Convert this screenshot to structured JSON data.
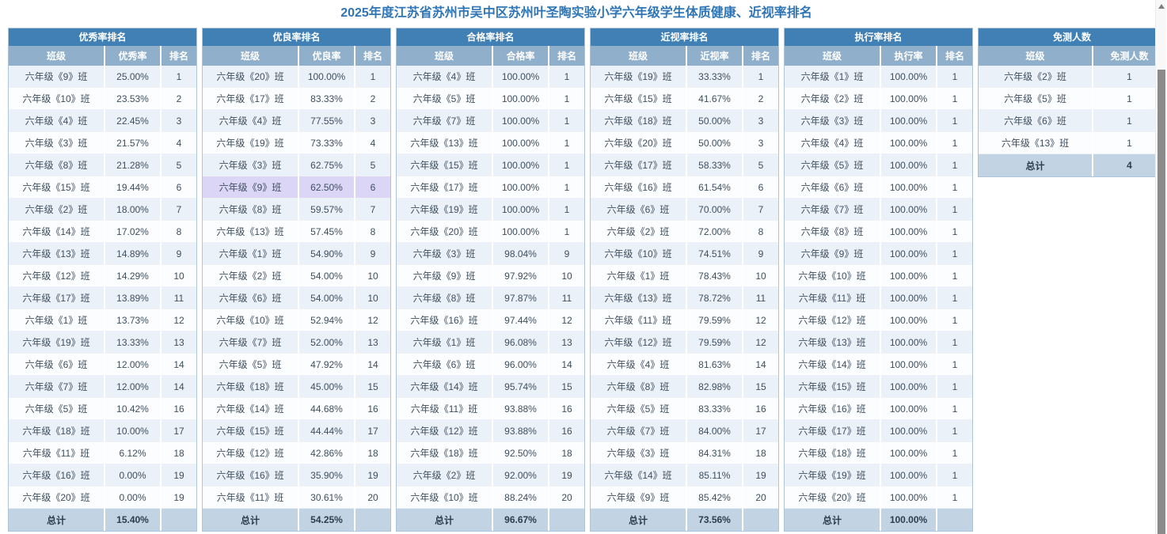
{
  "page": {
    "title": "2025年度江苏省苏州市吴中区苏州叶圣陶实验小学六年级学生体质健康、近视率排名"
  },
  "colors": {
    "header_bg": "#4180b5",
    "subheader_bg": "#8fafca",
    "row_odd": "#ebf1f8",
    "row_even": "#fbfdff",
    "row_highlight": "#dbd5f6",
    "total_bg": "#c2d3e3",
    "title_color": "#2e75b6",
    "cell_text": "#3f4e5e"
  },
  "scrollbar": {
    "up_icon": "scroll-up-arrow"
  },
  "tables": [
    {
      "id": "excellent-rate",
      "title": "优秀率排名",
      "columns": [
        "班级",
        "优秀率",
        "排名"
      ],
      "rows": [
        [
          "六年级《9》班",
          "25.00%",
          "1"
        ],
        [
          "六年级《10》班",
          "23.53%",
          "2"
        ],
        [
          "六年级《4》班",
          "22.45%",
          "3"
        ],
        [
          "六年级《3》班",
          "21.57%",
          "4"
        ],
        [
          "六年级《8》班",
          "21.28%",
          "5"
        ],
        [
          "六年级《15》班",
          "19.44%",
          "6"
        ],
        [
          "六年级《2》班",
          "18.00%",
          "7"
        ],
        [
          "六年级《14》班",
          "17.02%",
          "8"
        ],
        [
          "六年级《13》班",
          "14.89%",
          "9"
        ],
        [
          "六年级《12》班",
          "14.29%",
          "10"
        ],
        [
          "六年级《17》班",
          "13.89%",
          "11"
        ],
        [
          "六年级《1》班",
          "13.73%",
          "12"
        ],
        [
          "六年级《19》班",
          "13.33%",
          "13"
        ],
        [
          "六年级《6》班",
          "12.00%",
          "14"
        ],
        [
          "六年级《7》班",
          "12.00%",
          "14"
        ],
        [
          "六年级《5》班",
          "10.42%",
          "16"
        ],
        [
          "六年级《18》班",
          "10.00%",
          "17"
        ],
        [
          "六年级《11》班",
          "6.12%",
          "18"
        ],
        [
          "六年级《16》班",
          "0.00%",
          "19"
        ],
        [
          "六年级《20》班",
          "0.00%",
          "19"
        ]
      ],
      "total": [
        "总计",
        "15.40%",
        ""
      ]
    },
    {
      "id": "good-rate",
      "title": "优良率排名",
      "columns": [
        "班级",
        "优良率",
        "排名"
      ],
      "highlight_row_index": 5,
      "rows": [
        [
          "六年级《20》班",
          "100.00%",
          "1"
        ],
        [
          "六年级《17》班",
          "83.33%",
          "2"
        ],
        [
          "六年级《4》班",
          "77.55%",
          "3"
        ],
        [
          "六年级《19》班",
          "73.33%",
          "4"
        ],
        [
          "六年级《3》班",
          "62.75%",
          "5"
        ],
        [
          "六年级《9》班",
          "62.50%",
          "6"
        ],
        [
          "六年级《8》班",
          "59.57%",
          "7"
        ],
        [
          "六年级《13》班",
          "57.45%",
          "8"
        ],
        [
          "六年级《1》班",
          "54.90%",
          "9"
        ],
        [
          "六年级《2》班",
          "54.00%",
          "10"
        ],
        [
          "六年级《6》班",
          "54.00%",
          "10"
        ],
        [
          "六年级《10》班",
          "52.94%",
          "12"
        ],
        [
          "六年级《7》班",
          "52.00%",
          "13"
        ],
        [
          "六年级《5》班",
          "47.92%",
          "14"
        ],
        [
          "六年级《18》班",
          "45.00%",
          "15"
        ],
        [
          "六年级《14》班",
          "44.68%",
          "16"
        ],
        [
          "六年级《15》班",
          "44.44%",
          "17"
        ],
        [
          "六年级《12》班",
          "42.86%",
          "18"
        ],
        [
          "六年级《16》班",
          "35.90%",
          "19"
        ],
        [
          "六年级《11》班",
          "30.61%",
          "20"
        ]
      ],
      "total": [
        "总计",
        "54.25%",
        ""
      ]
    },
    {
      "id": "pass-rate",
      "title": "合格率排名",
      "columns": [
        "班级",
        "合格率",
        "排名"
      ],
      "rows": [
        [
          "六年级《4》班",
          "100.00%",
          "1"
        ],
        [
          "六年级《5》班",
          "100.00%",
          "1"
        ],
        [
          "六年级《7》班",
          "100.00%",
          "1"
        ],
        [
          "六年级《13》班",
          "100.00%",
          "1"
        ],
        [
          "六年级《15》班",
          "100.00%",
          "1"
        ],
        [
          "六年级《17》班",
          "100.00%",
          "1"
        ],
        [
          "六年级《19》班",
          "100.00%",
          "1"
        ],
        [
          "六年级《20》班",
          "100.00%",
          "1"
        ],
        [
          "六年级《3》班",
          "98.04%",
          "9"
        ],
        [
          "六年级《9》班",
          "97.92%",
          "10"
        ],
        [
          "六年级《8》班",
          "97.87%",
          "11"
        ],
        [
          "六年级《16》班",
          "97.44%",
          "12"
        ],
        [
          "六年级《1》班",
          "96.08%",
          "13"
        ],
        [
          "六年级《6》班",
          "96.00%",
          "14"
        ],
        [
          "六年级《14》班",
          "95.74%",
          "15"
        ],
        [
          "六年级《11》班",
          "93.88%",
          "16"
        ],
        [
          "六年级《12》班",
          "93.88%",
          "16"
        ],
        [
          "六年级《18》班",
          "92.50%",
          "18"
        ],
        [
          "六年级《2》班",
          "92.00%",
          "19"
        ],
        [
          "六年级《10》班",
          "88.24%",
          "20"
        ]
      ],
      "total": [
        "总计",
        "96.67%",
        ""
      ]
    },
    {
      "id": "myopia-rate",
      "title": "近视率排名",
      "columns": [
        "班级",
        "近视率",
        "排名"
      ],
      "rows": [
        [
          "六年级《19》班",
          "33.33%",
          "1"
        ],
        [
          "六年级《15》班",
          "41.67%",
          "2"
        ],
        [
          "六年级《18》班",
          "50.00%",
          "3"
        ],
        [
          "六年级《20》班",
          "50.00%",
          "3"
        ],
        [
          "六年级《17》班",
          "58.33%",
          "5"
        ],
        [
          "六年级《16》班",
          "61.54%",
          "6"
        ],
        [
          "六年级《6》班",
          "70.00%",
          "7"
        ],
        [
          "六年级《2》班",
          "72.00%",
          "8"
        ],
        [
          "六年级《10》班",
          "74.51%",
          "9"
        ],
        [
          "六年级《1》班",
          "78.43%",
          "10"
        ],
        [
          "六年级《13》班",
          "78.72%",
          "11"
        ],
        [
          "六年级《11》班",
          "79.59%",
          "12"
        ],
        [
          "六年级《12》班",
          "79.59%",
          "12"
        ],
        [
          "六年级《4》班",
          "81.63%",
          "14"
        ],
        [
          "六年级《8》班",
          "82.98%",
          "15"
        ],
        [
          "六年级《5》班",
          "83.33%",
          "16"
        ],
        [
          "六年级《7》班",
          "84.00%",
          "17"
        ],
        [
          "六年级《3》班",
          "84.31%",
          "18"
        ],
        [
          "六年级《14》班",
          "85.11%",
          "19"
        ],
        [
          "六年级《9》班",
          "85.42%",
          "20"
        ]
      ],
      "total": [
        "总计",
        "73.56%",
        ""
      ]
    },
    {
      "id": "execution-rate",
      "title": "执行率排名",
      "columns": [
        "班级",
        "执行率",
        "排名"
      ],
      "rows": [
        [
          "六年级《1》班",
          "100.00%",
          "1"
        ],
        [
          "六年级《2》班",
          "100.00%",
          "1"
        ],
        [
          "六年级《3》班",
          "100.00%",
          "1"
        ],
        [
          "六年级《4》班",
          "100.00%",
          "1"
        ],
        [
          "六年级《5》班",
          "100.00%",
          "1"
        ],
        [
          "六年级《6》班",
          "100.00%",
          "1"
        ],
        [
          "六年级《7》班",
          "100.00%",
          "1"
        ],
        [
          "六年级《8》班",
          "100.00%",
          "1"
        ],
        [
          "六年级《9》班",
          "100.00%",
          "1"
        ],
        [
          "六年级《10》班",
          "100.00%",
          "1"
        ],
        [
          "六年级《11》班",
          "100.00%",
          "1"
        ],
        [
          "六年级《12》班",
          "100.00%",
          "1"
        ],
        [
          "六年级《13》班",
          "100.00%",
          "1"
        ],
        [
          "六年级《14》班",
          "100.00%",
          "1"
        ],
        [
          "六年级《15》班",
          "100.00%",
          "1"
        ],
        [
          "六年级《16》班",
          "100.00%",
          "1"
        ],
        [
          "六年级《17》班",
          "100.00%",
          "1"
        ],
        [
          "六年级《18》班",
          "100.00%",
          "1"
        ],
        [
          "六年级《19》班",
          "100.00%",
          "1"
        ],
        [
          "六年级《20》班",
          "100.00%",
          "1"
        ]
      ],
      "total": [
        "总计",
        "100.00%",
        ""
      ]
    },
    {
      "id": "exempt-count",
      "title": "免测人数",
      "columns": [
        "班级",
        "免测人数"
      ],
      "rows": [
        [
          "六年级《2》班",
          "1"
        ],
        [
          "六年级《5》班",
          "1"
        ],
        [
          "六年级《6》班",
          "1"
        ],
        [
          "六年级《13》班",
          "1"
        ]
      ],
      "total": [
        "总计",
        "4"
      ]
    }
  ]
}
